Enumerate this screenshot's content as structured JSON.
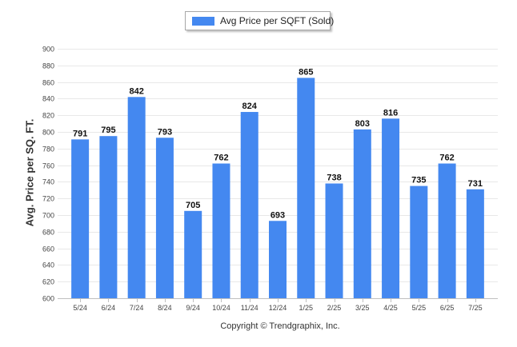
{
  "legend": {
    "label": "Avg Price per SQFT (Sold)"
  },
  "credit": "Copyright © Trendgraphix, Inc.",
  "colors": {
    "bar": "#4488f0",
    "grid": "#e8e8e8",
    "axis": "#c0c0c0"
  },
  "chart_data": {
    "type": "bar",
    "title": "",
    "xlabel": "",
    "ylabel": "Avg. Price per SQ. FT.",
    "categories": [
      "5/24",
      "6/24",
      "7/24",
      "8/24",
      "9/24",
      "10/24",
      "11/24",
      "12/24",
      "1/25",
      "2/25",
      "3/25",
      "4/25",
      "5/25",
      "6/25",
      "7/25"
    ],
    "series": [
      {
        "name": "Avg Price per SQFT (Sold)",
        "values": [
          791,
          795,
          842,
          793,
          705,
          762,
          824,
          693,
          865,
          738,
          803,
          816,
          735,
          762,
          731
        ]
      }
    ],
    "ylim": [
      600,
      900
    ],
    "yticks": [
      600,
      620,
      640,
      660,
      680,
      700,
      720,
      740,
      760,
      780,
      800,
      820,
      840,
      860,
      880,
      900
    ],
    "grid": true,
    "legend_position": "top-center",
    "data_labels": true
  }
}
